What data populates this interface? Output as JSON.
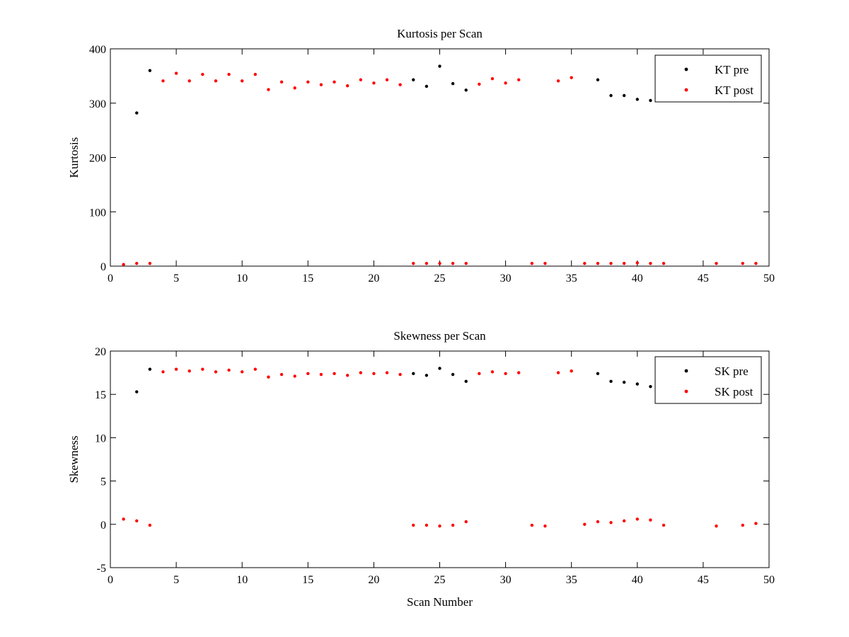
{
  "figure": {
    "background": "#ffffff"
  },
  "chart_data": [
    {
      "type": "scatter",
      "title": "Kurtosis per Scan",
      "xlabel": "",
      "ylabel": "Kurtosis",
      "xlim": [
        0,
        50
      ],
      "ylim": [
        0,
        400
      ],
      "xticks": [
        0,
        5,
        10,
        15,
        20,
        25,
        30,
        35,
        40,
        45,
        50
      ],
      "yticks": [
        0,
        100,
        200,
        300,
        400
      ],
      "legend_position": "top-right",
      "grid": false,
      "series": [
        {
          "name": "KT pre",
          "color": "#000000",
          "marker": "dot",
          "points": [
            [
              2,
              282
            ],
            [
              3,
              360
            ],
            [
              23,
              343
            ],
            [
              24,
              331
            ],
            [
              25,
              368
            ],
            [
              26,
              336
            ],
            [
              27,
              324
            ],
            [
              37,
              343
            ],
            [
              38,
              314
            ],
            [
              39,
              314
            ],
            [
              40,
              307
            ],
            [
              41,
              305
            ]
          ]
        },
        {
          "name": "KT post",
          "color": "#ff0000",
          "marker": "dot",
          "points": [
            [
              1,
              3
            ],
            [
              2,
              5
            ],
            [
              3,
              5
            ],
            [
              4,
              341
            ],
            [
              5,
              355
            ],
            [
              6,
              341
            ],
            [
              7,
              353
            ],
            [
              8,
              341
            ],
            [
              9,
              353
            ],
            [
              10,
              341
            ],
            [
              11,
              353
            ],
            [
              12,
              325
            ],
            [
              13,
              339
            ],
            [
              14,
              328
            ],
            [
              15,
              339
            ],
            [
              16,
              334
            ],
            [
              17,
              339
            ],
            [
              18,
              332
            ],
            [
              19,
              343
            ],
            [
              20,
              337
            ],
            [
              21,
              343
            ],
            [
              22,
              334
            ],
            [
              23,
              5
            ],
            [
              24,
              5
            ],
            [
              25,
              5
            ],
            [
              26,
              5
            ],
            [
              27,
              5
            ],
            [
              28,
              335
            ],
            [
              29,
              345
            ],
            [
              30,
              337
            ],
            [
              31,
              343
            ],
            [
              32,
              5
            ],
            [
              33,
              5
            ],
            [
              34,
              341
            ],
            [
              35,
              347
            ],
            [
              36,
              5
            ],
            [
              37,
              5
            ],
            [
              38,
              5
            ],
            [
              39,
              5
            ],
            [
              40,
              6
            ],
            [
              41,
              5
            ],
            [
              42,
              5
            ],
            [
              46,
              5
            ],
            [
              48,
              5
            ],
            [
              49,
              5
            ]
          ]
        }
      ]
    },
    {
      "type": "scatter",
      "title": "Skewness per Scan",
      "xlabel": "Scan Number",
      "ylabel": "Skewness",
      "xlim": [
        0,
        50
      ],
      "ylim": [
        -5,
        20
      ],
      "xticks": [
        0,
        5,
        10,
        15,
        20,
        25,
        30,
        35,
        40,
        45,
        50
      ],
      "yticks": [
        -5,
        0,
        5,
        10,
        15,
        20
      ],
      "legend_position": "top-right",
      "grid": false,
      "series": [
        {
          "name": "SK pre",
          "color": "#000000",
          "marker": "dot",
          "points": [
            [
              2,
              15.3
            ],
            [
              3,
              17.9
            ],
            [
              23,
              17.4
            ],
            [
              24,
              17.2
            ],
            [
              25,
              18
            ],
            [
              26,
              17.3
            ],
            [
              27,
              16.5
            ],
            [
              37,
              17.4
            ],
            [
              38,
              16.5
            ],
            [
              39,
              16.4
            ],
            [
              40,
              16.2
            ],
            [
              41,
              15.9
            ]
          ]
        },
        {
          "name": "SK post",
          "color": "#ff0000",
          "marker": "dot",
          "points": [
            [
              1,
              0.6
            ],
            [
              2,
              0.4
            ],
            [
              3,
              -0.1
            ],
            [
              4,
              17.6
            ],
            [
              5,
              17.9
            ],
            [
              6,
              17.7
            ],
            [
              7,
              17.9
            ],
            [
              8,
              17.6
            ],
            [
              9,
              17.8
            ],
            [
              10,
              17.6
            ],
            [
              11,
              17.9
            ],
            [
              12,
              17
            ],
            [
              13,
              17.3
            ],
            [
              14,
              17.1
            ],
            [
              15,
              17.4
            ],
            [
              16,
              17.3
            ],
            [
              17,
              17.4
            ],
            [
              18,
              17.2
            ],
            [
              19,
              17.5
            ],
            [
              20,
              17.4
            ],
            [
              21,
              17.5
            ],
            [
              22,
              17.3
            ],
            [
              23,
              -0.1
            ],
            [
              24,
              -0.1
            ],
            [
              25,
              -0.2
            ],
            [
              26,
              -0.1
            ],
            [
              27,
              0.3
            ],
            [
              28,
              17.4
            ],
            [
              29,
              17.6
            ],
            [
              30,
              17.4
            ],
            [
              31,
              17.5
            ],
            [
              32,
              -0.1
            ],
            [
              33,
              -0.2
            ],
            [
              34,
              17.5
            ],
            [
              35,
              17.7
            ],
            [
              36,
              0
            ],
            [
              37,
              0.3
            ],
            [
              38,
              0.2
            ],
            [
              39,
              0.4
            ],
            [
              40,
              0.6
            ],
            [
              41,
              0.5
            ],
            [
              42,
              -0.1
            ],
            [
              46,
              -0.2
            ],
            [
              48,
              -0.1
            ],
            [
              49,
              0.1
            ]
          ]
        }
      ]
    }
  ]
}
